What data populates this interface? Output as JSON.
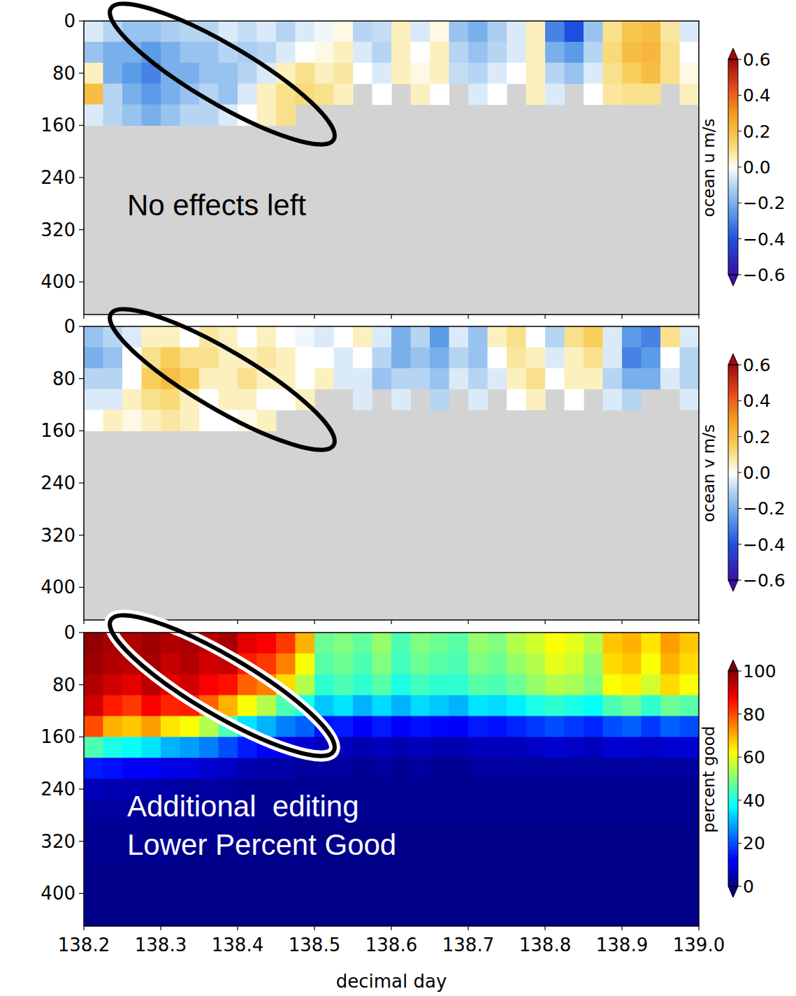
{
  "chart_data": [
    {
      "type": "heatmap",
      "tick_labels": "y",
      "xlim": [
        138.2,
        139.0
      ],
      "ylim": [
        450,
        0
      ],
      "yticks": [
        0,
        80,
        160,
        240,
        320,
        400
      ],
      "xticks": [
        138.2,
        138.3,
        138.4,
        138.5,
        138.6,
        138.7,
        138.8,
        138.9,
        {
          "value": 139.0,
          "label": "139.0"
        }
      ],
      "x_edges": [
        138.2,
        138.225,
        138.25,
        138.275,
        138.3,
        138.325,
        138.35,
        138.375,
        138.4,
        138.425,
        138.45,
        138.475,
        138.5,
        138.525,
        138.55,
        138.575,
        138.6,
        138.625,
        138.65,
        138.675,
        138.7,
        138.725,
        138.75,
        138.775,
        138.8,
        138.825,
        138.85,
        138.875,
        138.9,
        138.925,
        138.95,
        138.975,
        139.0
      ],
      "y_edges": [
        0,
        32,
        64,
        96,
        128,
        160
      ],
      "cells": [
        [
          -0.05,
          -0.1,
          -0.15,
          -0.15,
          -0.12,
          -0.1,
          -0.1,
          -0.05,
          -0.08,
          -0.05,
          -0.1,
          -0.05,
          -0.02,
          0.02,
          -0.1,
          -0.08,
          0.05,
          -0.05,
          0.02,
          -0.15,
          -0.2,
          -0.12,
          -0.05,
          0.05,
          -0.3,
          -0.4,
          -0.15,
          0.1,
          0.18,
          0.2,
          0.08,
          -0.05
        ],
        [
          -0.15,
          -0.2,
          -0.2,
          -0.25,
          -0.2,
          -0.15,
          -0.15,
          -0.1,
          -0.12,
          -0.1,
          -0.05,
          0.0,
          0.02,
          0.05,
          -0.05,
          -0.1,
          0.05,
          0.0,
          0.05,
          -0.1,
          -0.15,
          -0.1,
          -0.05,
          0.05,
          -0.2,
          -0.25,
          -0.1,
          0.12,
          0.2,
          0.22,
          0.1,
          0.0
        ],
        [
          0.05,
          -0.2,
          -0.25,
          -0.3,
          -0.2,
          -0.2,
          -0.15,
          -0.15,
          -0.1,
          -0.05,
          0.05,
          0.1,
          0.05,
          0.08,
          0.0,
          -0.05,
          0.05,
          0.02,
          0.05,
          -0.08,
          -0.1,
          -0.05,
          0.0,
          0.05,
          -0.1,
          -0.15,
          -0.05,
          0.1,
          0.15,
          0.2,
          0.1,
          0.02
        ],
        [
          0.2,
          -0.1,
          -0.2,
          -0.25,
          -0.2,
          -0.15,
          -0.1,
          -0.15,
          -0.05,
          0.05,
          0.1,
          0.12,
          0.1,
          0.05,
          null,
          0.0,
          null,
          0.05,
          0.0,
          null,
          -0.05,
          0.0,
          null,
          0.05,
          -0.05,
          null,
          0.0,
          0.08,
          0.1,
          0.1,
          null,
          0.05
        ],
        [
          -0.05,
          -0.1,
          -0.15,
          -0.2,
          -0.15,
          -0.1,
          -0.1,
          -0.05,
          0.0,
          0.05,
          0.1,
          null,
          null,
          null,
          null,
          null,
          null,
          null,
          null,
          null,
          null,
          null,
          null,
          null,
          null,
          null,
          null,
          null,
          null,
          null,
          null,
          null
        ]
      ],
      "colorbar": {
        "label": "ocean u m/s",
        "range": [
          -0.6,
          0.6
        ],
        "ticks": [
          {
            "value": 0.6,
            "label": "0.6"
          },
          0.4,
          0.2,
          {
            "value": 0,
            "label": "0.0"
          },
          {
            "value": -0.2,
            "label": "−0.2"
          },
          {
            "value": -0.4,
            "label": "−0.4"
          },
          {
            "value": -0.6,
            "label": "−0.6"
          }
        ]
      },
      "annotations": [
        "No effects left"
      ]
    },
    {
      "type": "heatmap",
      "tick_labels": "y",
      "xlim": [
        138.2,
        139.0
      ],
      "ylim": [
        450,
        0
      ],
      "yticks": [
        0,
        80,
        160,
        240,
        320,
        400
      ],
      "xticks": [
        138.2,
        138.3,
        138.4,
        138.5,
        138.6,
        138.7,
        138.8,
        138.9,
        {
          "value": 139.0,
          "label": "139.0"
        }
      ],
      "x_edges": [
        138.2,
        138.225,
        138.25,
        138.275,
        138.3,
        138.325,
        138.35,
        138.375,
        138.4,
        138.425,
        138.45,
        138.475,
        138.5,
        138.525,
        138.55,
        138.575,
        138.6,
        138.625,
        138.65,
        138.675,
        138.7,
        138.725,
        138.75,
        138.775,
        138.8,
        138.825,
        138.85,
        138.875,
        138.9,
        138.925,
        138.95,
        138.975,
        139.0
      ],
      "y_edges": [
        0,
        32,
        64,
        96,
        128,
        160
      ],
      "cells": [
        [
          -0.15,
          -0.1,
          -0.05,
          0.05,
          0.05,
          0.0,
          0.08,
          0.05,
          0.0,
          0.05,
          0.0,
          -0.02,
          -0.05,
          0.0,
          0.05,
          -0.05,
          -0.2,
          -0.1,
          -0.25,
          -0.05,
          -0.15,
          0.05,
          0.1,
          0.0,
          -0.1,
          0.1,
          0.15,
          -0.05,
          -0.25,
          -0.3,
          0.1,
          -0.05
        ],
        [
          -0.2,
          -0.15,
          0.0,
          0.1,
          0.15,
          0.1,
          0.1,
          0.05,
          0.05,
          0.08,
          0.05,
          0.0,
          0.0,
          -0.05,
          0.0,
          -0.1,
          -0.2,
          -0.15,
          -0.2,
          -0.1,
          -0.15,
          0.0,
          0.08,
          0.05,
          -0.05,
          0.05,
          0.1,
          -0.05,
          -0.3,
          -0.25,
          0.0,
          -0.1
        ],
        [
          -0.1,
          -0.1,
          0.0,
          0.15,
          0.2,
          0.15,
          0.05,
          0.05,
          0.1,
          0.05,
          0.05,
          0.0,
          0.05,
          -0.05,
          -0.05,
          -0.15,
          -0.1,
          -0.1,
          -0.15,
          -0.05,
          -0.1,
          -0.05,
          0.05,
          0.1,
          0.0,
          0.05,
          0.05,
          -0.1,
          -0.2,
          -0.2,
          -0.05,
          -0.1
        ],
        [
          -0.05,
          -0.05,
          0.05,
          0.1,
          0.12,
          0.05,
          0.0,
          0.05,
          0.05,
          0.0,
          0.0,
          0.05,
          null,
          null,
          -0.05,
          null,
          -0.05,
          null,
          -0.1,
          null,
          -0.05,
          null,
          0.0,
          0.05,
          null,
          0.0,
          null,
          -0.05,
          -0.1,
          null,
          null,
          -0.05
        ],
        [
          0.0,
          0.05,
          0.02,
          0.05,
          0.08,
          0.05,
          0.0,
          0.0,
          0.02,
          0.05,
          null,
          null,
          null,
          null,
          null,
          null,
          null,
          null,
          null,
          null,
          null,
          null,
          null,
          null,
          null,
          null,
          null,
          null,
          null,
          null,
          null,
          null
        ]
      ],
      "colorbar": {
        "label": "ocean v m/s",
        "range": [
          -0.6,
          0.6
        ],
        "ticks": [
          {
            "value": 0.6,
            "label": "0.6"
          },
          0.4,
          0.2,
          {
            "value": 0,
            "label": "0.0"
          },
          {
            "value": -0.2,
            "label": "−0.2"
          },
          {
            "value": -0.4,
            "label": "−0.4"
          },
          {
            "value": -0.6,
            "label": "−0.6"
          }
        ]
      }
    },
    {
      "type": "heatmap",
      "xlim": [
        138.2,
        139.0
      ],
      "ylim": [
        450,
        0
      ],
      "yticks": [
        0,
        80,
        160,
        240,
        320,
        400
      ],
      "xticks": [
        138.2,
        138.3,
        138.4,
        138.5,
        138.6,
        138.7,
        138.8,
        138.9,
        {
          "value": 139.0,
          "label": "139.0"
        }
      ],
      "xlabel": "decimal day",
      "x_edges": [
        138.2,
        138.225,
        138.25,
        138.275,
        138.3,
        138.325,
        138.35,
        138.375,
        138.4,
        138.425,
        138.45,
        138.475,
        138.5,
        138.525,
        138.55,
        138.575,
        138.6,
        138.625,
        138.65,
        138.675,
        138.7,
        138.725,
        138.75,
        138.775,
        138.8,
        138.825,
        138.85,
        138.875,
        138.9,
        138.925,
        138.95,
        138.975,
        139.0
      ],
      "y_edges": [
        0,
        32,
        64,
        96,
        128,
        160,
        192,
        224,
        256,
        288,
        320,
        352,
        384,
        416,
        450
      ],
      "cells": [
        [
          98,
          96,
          95,
          97,
          95,
          96,
          94,
          96,
          90,
          88,
          82,
          70,
          48,
          50,
          47,
          52,
          45,
          50,
          48,
          46,
          52,
          50,
          55,
          58,
          62,
          60,
          55,
          68,
          70,
          65,
          72,
          68
        ],
        [
          97,
          95,
          94,
          96,
          93,
          95,
          92,
          93,
          85,
          82,
          75,
          62,
          46,
          48,
          45,
          50,
          44,
          48,
          46,
          45,
          50,
          48,
          52,
          55,
          60,
          58,
          52,
          66,
          68,
          62,
          70,
          66
        ],
        [
          95,
          92,
          90,
          94,
          90,
          92,
          88,
          86,
          78,
          75,
          66,
          55,
          42,
          45,
          42,
          46,
          40,
          44,
          42,
          42,
          46,
          45,
          48,
          52,
          55,
          54,
          50,
          62,
          64,
          58,
          66,
          62
        ],
        [
          92,
          85,
          82,
          88,
          84,
          85,
          78,
          70,
          62,
          55,
          45,
          40,
          32,
          35,
          30,
          34,
          30,
          34,
          32,
          30,
          35,
          34,
          36,
          40,
          42,
          40,
          38,
          45,
          48,
          42,
          48,
          46
        ],
        [
          80,
          70,
          68,
          72,
          65,
          62,
          55,
          45,
          35,
          30,
          25,
          22,
          14,
          15,
          12,
          15,
          12,
          14,
          13,
          12,
          15,
          14,
          16,
          18,
          20,
          18,
          16,
          20,
          22,
          18,
          22,
          20
        ],
        [
          45,
          40,
          38,
          35,
          30,
          28,
          25,
          20,
          15,
          12,
          10,
          8,
          6,
          6,
          5,
          6,
          5,
          6,
          5,
          5,
          6,
          6,
          6,
          7,
          8,
          7,
          6,
          8,
          8,
          7,
          8,
          8
        ],
        [
          15,
          14,
          12,
          12,
          10,
          10,
          8,
          7,
          5,
          4,
          4,
          3,
          3,
          3,
          2,
          3,
          2,
          3,
          2,
          2,
          3,
          3,
          3,
          3,
          3,
          3,
          3,
          3,
          3,
          3,
          3,
          3
        ],
        [
          6,
          5,
          5,
          4,
          4,
          3,
          3,
          3,
          2,
          2,
          2,
          2,
          2,
          2,
          2,
          2,
          2,
          2,
          2,
          2,
          2,
          2,
          2,
          2,
          2,
          2,
          2,
          2,
          2,
          2,
          2,
          2
        ],
        [
          3,
          3,
          3,
          2,
          2,
          2,
          2,
          2,
          2,
          2,
          2,
          2,
          2,
          2,
          2,
          2,
          2,
          2,
          2,
          2,
          2,
          2,
          2,
          2,
          2,
          2,
          2,
          2,
          2,
          2,
          2,
          2
        ],
        [
          2,
          2,
          2,
          2,
          2,
          2,
          2,
          2,
          2,
          1,
          1,
          1,
          1,
          1,
          1,
          1,
          1,
          1,
          1,
          1,
          1,
          1,
          1,
          1,
          1,
          1,
          1,
          1,
          1,
          1,
          1,
          1
        ],
        [
          2,
          2,
          2,
          2,
          2,
          1,
          1,
          1,
          1,
          1,
          1,
          1,
          1,
          1,
          1,
          1,
          1,
          1,
          1,
          1,
          1,
          1,
          1,
          1,
          1,
          1,
          1,
          1,
          1,
          1,
          1,
          1
        ],
        [
          1,
          1,
          1,
          1,
          1,
          1,
          1,
          1,
          1,
          1,
          1,
          1,
          1,
          1,
          1,
          1,
          1,
          1,
          1,
          1,
          1,
          1,
          1,
          1,
          1,
          1,
          1,
          1,
          1,
          1,
          1,
          1
        ],
        [
          1,
          1,
          1,
          1,
          1,
          1,
          1,
          1,
          1,
          1,
          1,
          1,
          1,
          1,
          1,
          1,
          1,
          1,
          1,
          1,
          1,
          1,
          1,
          1,
          1,
          1,
          1,
          1,
          1,
          1,
          1,
          1
        ],
        [
          1,
          1,
          1,
          1,
          1,
          1,
          1,
          1,
          1,
          1,
          1,
          1,
          1,
          1,
          1,
          1,
          1,
          1,
          1,
          1,
          1,
          1,
          1,
          1,
          1,
          1,
          1,
          1,
          1,
          1,
          1,
          1
        ]
      ],
      "colorbar": {
        "label": "percent good",
        "range": [
          0,
          100
        ],
        "ticks": [
          100,
          80,
          60,
          40,
          20,
          0
        ]
      },
      "annotations": [
        "Additional  editing",
        "Lower Percent Good"
      ]
    }
  ]
}
